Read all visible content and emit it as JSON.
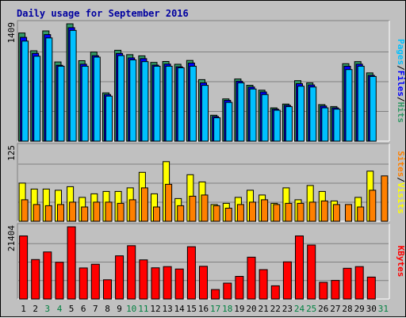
{
  "chart_data": {
    "title": "Daily usage for September 2016",
    "days": [
      "1",
      "2",
      "3",
      "4",
      "5",
      "6",
      "7",
      "8",
      "9",
      "10",
      "11",
      "12",
      "13",
      "14",
      "15",
      "16",
      "17",
      "18",
      "19",
      "20",
      "21",
      "22",
      "23",
      "24",
      "25",
      "26",
      "27",
      "28",
      "29",
      "30",
      "31"
    ],
    "weekend_days": [
      "3",
      "4",
      "10",
      "11",
      "17",
      "18",
      "24",
      "25",
      "31"
    ],
    "colors": {
      "title": "#0000a0",
      "hits": "#339966",
      "files": "#0000ff",
      "pages": "#00c0ff",
      "visits": "#ffff00",
      "sites": "#ff8000",
      "kbytes": "#ff0000",
      "weekday_label": "#000000",
      "weekend_label": "#008040"
    },
    "panels": [
      {
        "type": "bar",
        "ymax_label": "1409",
        "ymax": 1409,
        "legend": [
          {
            "text": "Pages",
            "color": "#00c0ff"
          },
          {
            "text": "/",
            "color": "#000000"
          },
          {
            "text": "Files",
            "color": "#0000ff"
          },
          {
            "text": "/",
            "color": "#000000"
          },
          {
            "text": "Hits",
            "color": "#339966"
          }
        ],
        "series": [
          {
            "name": "Hits",
            "color": "#339966",
            "values": [
              1299,
              1085,
              1323,
              951,
              1409,
              966,
              1070,
              580,
              1091,
              1039,
              1024,
              945,
              957,
              923,
              969,
              739,
              311,
              507,
              746,
              671,
              612,
              400,
              446,
              726,
              700,
              439,
              415,
              930,
              955,
              820,
              0
            ]
          },
          {
            "name": "Files",
            "color": "#0000ff",
            "values": [
              1246,
              1054,
              1280,
              911,
              1362,
              924,
              1026,
              560,
              1053,
              1000,
              991,
              913,
              925,
              893,
              938,
              700,
              296,
              490,
              720,
              650,
              590,
              385,
              430,
              690,
              675,
              422,
              400,
              900,
              924,
              790,
              0
            ]
          },
          {
            "name": "Pages",
            "color": "#00c0ff",
            "values": [
              1201,
              1020,
              1240,
              900,
              1330,
              900,
              1009,
              541,
              1027,
              976,
              955,
              900,
              900,
              881,
              900,
              670,
              281,
              466,
              700,
              626,
              560,
              371,
              415,
              660,
              650,
              400,
              385,
              860,
              900,
              777,
              0
            ]
          }
        ]
      },
      {
        "type": "bar",
        "ymax_label": "125",
        "ymax": 125,
        "legend": [
          {
            "text": "Sites",
            "color": "#ff8000"
          },
          {
            "text": "/",
            "color": "#000000"
          },
          {
            "text": "Visits",
            "color": "#ffff00"
          }
        ],
        "series": [
          {
            "name": "Visits",
            "color": "#ffff00",
            "values": [
              64,
              54,
              54,
              52,
              58,
              40,
              46,
              50,
              50,
              56,
              82,
              46,
              100,
              38,
              78,
              66,
              28,
              30,
              40,
              52,
              44,
              30,
              56,
              36,
              60,
              50,
              34,
              0,
              40,
              84,
              0
            ]
          },
          {
            "name": "Sites",
            "color": "#ff8000",
            "values": [
              36,
              28,
              26,
              28,
              32,
              24,
              32,
              32,
              30,
              36,
              56,
              24,
              62,
              26,
              42,
              44,
              26,
              22,
              28,
              32,
              36,
              28,
              30,
              30,
              32,
              34,
              28,
              28,
              24,
              52,
              76
            ]
          }
        ]
      },
      {
        "type": "bar",
        "ymax_label": "21404",
        "ymax": 21404,
        "legend": [
          {
            "text": "KBytes",
            "color": "#ff0000"
          }
        ],
        "series": [
          {
            "name": "KBytes",
            "color": "#ff0000",
            "values": [
              18700,
              11700,
              13950,
              10900,
              21404,
              9200,
              10300,
              5700,
              12800,
              15800,
              11600,
              9250,
              9600,
              8900,
              15500,
              9700,
              2800,
              4700,
              6700,
              12400,
              8700,
              3900,
              11000,
              18700,
              16000,
              4950,
              5500,
              9100,
              9600,
              6500,
              0
            ]
          }
        ]
      }
    ]
  }
}
